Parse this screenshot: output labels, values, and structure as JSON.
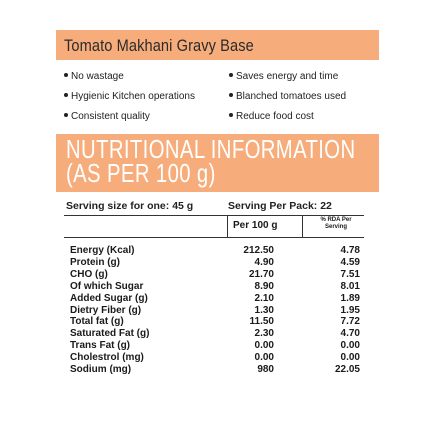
{
  "product": {
    "title": "Tomato Makhani Gravy Base"
  },
  "features": [
    "No wastage",
    "Saves energy and time",
    "Hygienic Kitchen operations",
    "Blanched tomatoes used",
    "Consistent quality",
    "Reduce food cost"
  ],
  "nutrition": {
    "heading_line1": "NUTRITIONAL INFORMATION",
    "heading_line2": "(AS PER 100 g)",
    "serving_size": "Serving size for one: 45 g",
    "serving_per_pack": "Serving Per Pack: 22",
    "col_per100": "Per 100 g",
    "col_rda_line1": "% RDA Per",
    "col_rda_line2": "Serving",
    "rows": [
      {
        "name": "Energy (Kcal)",
        "per100": "212.50",
        "rda": "4.78"
      },
      {
        "name": "Protein (g)",
        "per100": "4.90",
        "rda": "4.59"
      },
      {
        "name": "CHO (g)",
        "per100": "21.70",
        "rda": "7.51"
      },
      {
        "name": "Of which Sugar",
        "per100": "8.90",
        "rda": "8.01"
      },
      {
        "name": "Added Sugar (g)",
        "per100": "2.10",
        "rda": "1.89"
      },
      {
        "name": "Dietry Fiber (g)",
        "per100": "1.30",
        "rda": "1.95"
      },
      {
        "name": "Total fat (g)",
        "per100": "11.50",
        "rda": "7.72"
      },
      {
        "name": "Saturated Fat (g)",
        "per100": "2.30",
        "rda": "4.70"
      },
      {
        "name": "Trans Fat (g)",
        "per100": "0.00",
        "rda": "0.00"
      },
      {
        "name": "Cholestrol (mg)",
        "per100": "0.00",
        "rda": "0.00"
      },
      {
        "name": "Sodium (mg)",
        "per100": "980",
        "rda": "22.05"
      }
    ]
  },
  "colors": {
    "accent": "#f6ad7b"
  }
}
